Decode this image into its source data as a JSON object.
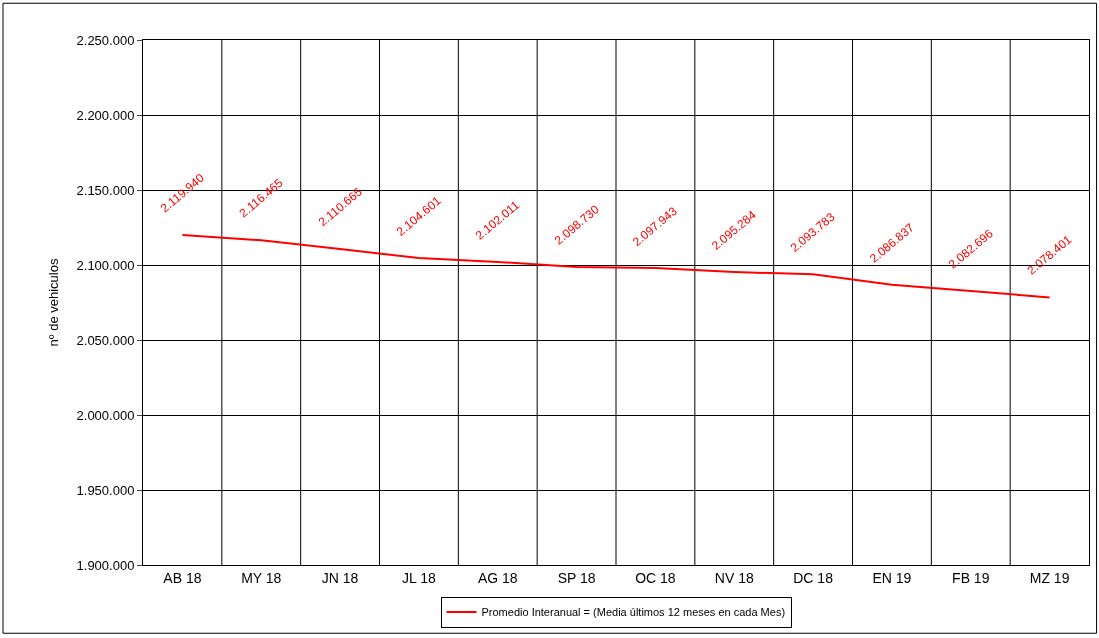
{
  "chart_data": {
    "type": "line",
    "ylabel": "nº de vehiculos",
    "categories": [
      "AB 18",
      "MY 18",
      "JN 18",
      "JL 18",
      "AG 18",
      "SP 18",
      "OC 18",
      "NV 18",
      "DC 18",
      "EN 19",
      "FB 19",
      "MZ 19"
    ],
    "series": [
      {
        "name": "Promedio Interanual = (Media últimos 12 meses en cada Mes)",
        "color": "#ff0000",
        "values": [
          2119940,
          2116465,
          2110665,
          2104601,
          2102011,
          2098730,
          2097943,
          2095284,
          2093783,
          2086837,
          2082696,
          2078401
        ],
        "value_labels": [
          "2.119.940",
          "2.116.465",
          "2.110.665",
          "2.104.601",
          "2.102.011",
          "2.098.730",
          "2.097.943",
          "2.095.284",
          "2.093.783",
          "2.086.837",
          "2.082.696",
          "2.078.401"
        ]
      }
    ],
    "ylim": [
      1900000,
      2250000
    ],
    "yticks": [
      {
        "value": 1900000,
        "label": "1.900.000"
      },
      {
        "value": 1950000,
        "label": "1.950.000"
      },
      {
        "value": 2000000,
        "label": "2.000.000"
      },
      {
        "value": 2050000,
        "label": "2.050.000"
      },
      {
        "value": 2100000,
        "label": "2.100.000"
      },
      {
        "value": 2150000,
        "label": "2.150.000"
      },
      {
        "value": 2200000,
        "label": "2.200.000"
      },
      {
        "value": 2250000,
        "label": "2.250.000"
      }
    ],
    "grid": true,
    "legend": "bottom",
    "marker": "none",
    "line_style": "solid"
  }
}
